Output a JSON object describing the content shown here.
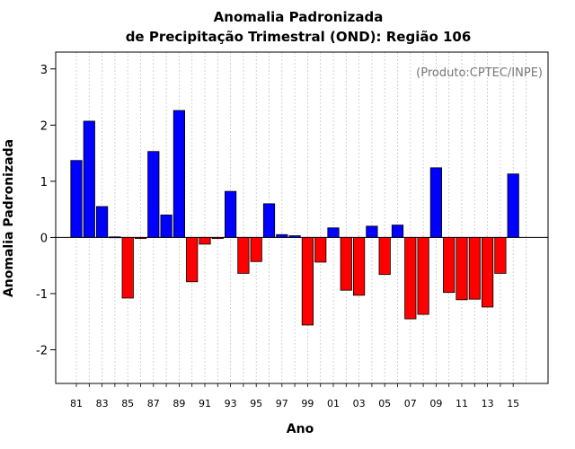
{
  "chart_data": {
    "type": "bar",
    "title_line1": "Anomalia Padronizada",
    "title_line2": "de Precipitação Trimestral (OND): Região 106",
    "xlabel": "Ano",
    "ylabel": "Anomalia Padronizada",
    "annotation": "(Produto:CPTEC/INPE)",
    "ylim": [
      -2.6,
      3.3
    ],
    "yticks": [
      -2,
      -1,
      0,
      1,
      2,
      3
    ],
    "grid": true,
    "positive_color": "#0000ff",
    "negative_color": "#ff0000",
    "categories": [
      "81",
      "82",
      "83",
      "84",
      "85",
      "86",
      "87",
      "88",
      "89",
      "90",
      "91",
      "92",
      "93",
      "94",
      "95",
      "96",
      "97",
      "98",
      "99",
      "00",
      "01",
      "02",
      "03",
      "04",
      "05",
      "06",
      "07",
      "08",
      "09",
      "10",
      "11",
      "12",
      "13",
      "14",
      "15"
    ],
    "tick_labels": [
      "81",
      "83",
      "85",
      "87",
      "89",
      "91",
      "93",
      "95",
      "97",
      "99",
      "01",
      "03",
      "05",
      "07",
      "09",
      "11",
      "13",
      "15"
    ],
    "values": [
      1.37,
      2.07,
      0.55,
      0.01,
      -1.08,
      -0.02,
      1.53,
      0.4,
      2.26,
      -0.79,
      -0.12,
      -0.02,
      0.82,
      -0.64,
      -0.43,
      0.6,
      0.05,
      0.03,
      -1.56,
      -0.44,
      0.17,
      -0.94,
      -1.03,
      0.2,
      -0.66,
      0.22,
      -1.45,
      -1.37,
      1.24,
      -0.98,
      -1.11,
      -1.1,
      -1.24,
      -0.64,
      1.13
    ]
  }
}
